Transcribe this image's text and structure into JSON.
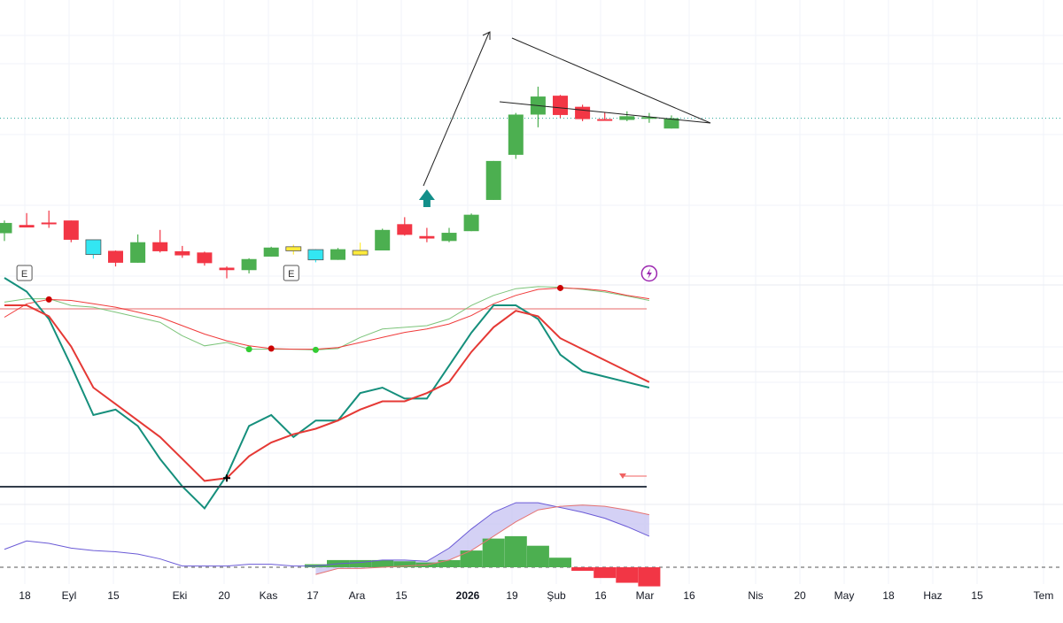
{
  "chart_data": [
    {
      "type": "candlestick",
      "panel": "price",
      "candles": [
        {
          "o": 7.27,
          "h": 7.58,
          "l": 7.08,
          "c": 7.52,
          "color": "#4caf50"
        },
        {
          "o": 7.41,
          "h": 7.76,
          "l": 7.41,
          "c": 7.47,
          "color": "#f23645"
        },
        {
          "o": 7.52,
          "h": 7.82,
          "l": 7.4,
          "c": 7.53,
          "color": "#f23645"
        },
        {
          "o": 7.58,
          "h": 7.58,
          "l": 7.05,
          "c": 7.11,
          "color": "#f23645"
        },
        {
          "o": 7.11,
          "h": 7.11,
          "l": 6.65,
          "c": 6.75,
          "color": "#33e6f2"
        },
        {
          "o": 6.84,
          "h": 6.85,
          "l": 6.46,
          "c": 6.55,
          "color": "#f23645"
        },
        {
          "o": 6.55,
          "h": 7.24,
          "l": 6.55,
          "c": 7.05,
          "color": "#4caf50"
        },
        {
          "o": 7.05,
          "h": 7.35,
          "l": 6.8,
          "c": 6.83,
          "color": "#f23645"
        },
        {
          "o": 6.83,
          "h": 6.96,
          "l": 6.67,
          "c": 6.73,
          "color": "#f23645"
        },
        {
          "o": 6.8,
          "h": 6.82,
          "l": 6.48,
          "c": 6.54,
          "color": "#f23645"
        },
        {
          "o": 6.43,
          "h": 6.46,
          "l": 6.17,
          "c": 6.37,
          "color": "#f23645"
        },
        {
          "o": 6.37,
          "h": 6.66,
          "l": 6.29,
          "c": 6.64,
          "color": "#4caf50"
        },
        {
          "o": 6.7,
          "h": 6.94,
          "l": 6.7,
          "c": 6.92,
          "color": "#4caf50"
        },
        {
          "o": 6.94,
          "h": 6.99,
          "l": 6.75,
          "c": 6.84,
          "color": "#ffeb3b"
        },
        {
          "o": 6.87,
          "h": 6.88,
          "l": 6.56,
          "c": 6.62,
          "color": "#33e6f2"
        },
        {
          "o": 6.62,
          "h": 6.91,
          "l": 6.62,
          "c": 6.88,
          "color": "#4caf50"
        },
        {
          "o": 6.85,
          "h": 7.04,
          "l": 6.72,
          "c": 6.74,
          "color": "#ffeb3b"
        },
        {
          "o": 6.85,
          "h": 7.38,
          "l": 6.85,
          "c": 7.35,
          "color": "#4caf50"
        },
        {
          "o": 7.49,
          "h": 7.66,
          "l": 7.21,
          "c": 7.23,
          "color": "#f23645"
        },
        {
          "o": 7.2,
          "h": 7.4,
          "l": 7.05,
          "c": 7.14,
          "color": "#f23645"
        },
        {
          "o": 7.08,
          "h": 7.4,
          "l": 7.05,
          "c": 7.28,
          "color": "#4caf50"
        },
        {
          "o": 7.32,
          "h": 7.75,
          "l": 7.32,
          "c": 7.72,
          "color": "#4caf50"
        },
        {
          "o": 8.08,
          "h": 9.03,
          "l": 8.08,
          "c": 9.03,
          "color": "#4caf50"
        },
        {
          "o": 9.18,
          "h": 10.2,
          "l": 9.08,
          "c": 10.16,
          "color": "#4caf50"
        },
        {
          "o": 10.16,
          "h": 10.84,
          "l": 9.85,
          "c": 10.6,
          "color": "#4caf50"
        },
        {
          "o": 10.62,
          "h": 10.64,
          "l": 10.08,
          "c": 10.15,
          "color": "#f23645"
        },
        {
          "o": 10.35,
          "h": 10.4,
          "l": 10.0,
          "c": 10.05,
          "color": "#f23645"
        },
        {
          "o": 10.05,
          "h": 10.22,
          "l": 10.01,
          "c": 10.03,
          "color": "#f23645"
        },
        {
          "o": 10.03,
          "h": 10.24,
          "l": 10.0,
          "c": 10.12,
          "color": "#4caf50"
        },
        {
          "o": 10.1,
          "h": 10.2,
          "l": 9.96,
          "c": 10.1,
          "color": "#4caf50"
        },
        {
          "o": 9.82,
          "h": 10.14,
          "l": 9.82,
          "c": 10.07,
          "color": "#4caf50"
        }
      ],
      "reference_price": 10.07,
      "earnings_markers": [
        1,
        13
      ],
      "signal_arrow_at": 19,
      "lightning_marker_at": 29
    },
    {
      "type": "line",
      "panel": "oscillator-1",
      "series": [
        {
          "color": "#7cc47a",
          "values": [
            20,
            30,
            30,
            10,
            5,
            -10,
            -25,
            -40,
            -80,
            -110,
            -100,
            -120,
            -120,
            -120,
            -122,
            -118,
            -85,
            -60,
            -55,
            -50,
            -30,
            10,
            40,
            60,
            66,
            64,
            58,
            50,
            38,
            25
          ]
        },
        {
          "color": "#f03a3a",
          "values": [
            -25,
            15,
            28,
            25,
            15,
            5,
            -10,
            -25,
            -50,
            -75,
            -95,
            -110,
            -118,
            -120,
            -120,
            -115,
            -100,
            -85,
            -70,
            -60,
            -45,
            -20,
            15,
            40,
            58,
            62,
            60,
            54,
            40,
            30
          ]
        }
      ],
      "level": 0,
      "dots": [
        {
          "i": 2,
          "series": 1,
          "color": "#cc0000"
        },
        {
          "i": 11,
          "series": 0,
          "color": "#33cc33"
        },
        {
          "i": 12,
          "series": 1,
          "color": "#cc0000"
        },
        {
          "i": 14,
          "series": 0,
          "color": "#33cc33"
        },
        {
          "i": 25,
          "series": 1,
          "color": "#cc0000"
        }
      ]
    },
    {
      "type": "line",
      "panel": "oscillator-2",
      "series": [
        {
          "color": "#158f7c",
          "values": [
            110,
            105,
            95,
            78,
            60,
            62,
            56,
            44,
            34,
            26,
            38,
            56,
            60,
            52,
            58,
            58,
            68,
            70,
            66,
            66,
            78,
            90,
            100,
            100,
            95,
            82,
            76,
            74,
            72,
            70
          ]
        },
        {
          "color": "#e53935",
          "values": [
            100,
            100,
            96,
            85,
            70,
            64,
            58,
            52,
            44,
            36,
            37,
            45,
            50,
            53,
            55,
            58,
            62,
            65,
            65,
            68,
            72,
            83,
            92,
            98,
            96,
            88,
            84,
            80,
            76,
            72
          ]
        }
      ],
      "cross_marker_at": 10,
      "baseline_color": "#333d4a",
      "signal_triangle_color": "#f06262"
    },
    {
      "type": "histogram",
      "panel": "macd",
      "histogram": [
        0,
        0,
        0,
        0,
        0,
        0,
        0,
        0,
        0,
        0,
        0,
        0,
        0,
        0,
        0.25,
        0.6,
        0.6,
        0.6,
        0.5,
        0.4,
        0.6,
        1.4,
        2.4,
        2.6,
        1.8,
        0.8,
        -0.3,
        -0.9,
        -1.3,
        -1.6
      ],
      "macd": [
        1.5,
        2.2,
        2.0,
        1.6,
        1.4,
        1.3,
        1.1,
        0.7,
        0.1,
        0.1,
        0.1,
        0.25,
        0.25,
        0.1,
        0.1,
        0.3,
        0.4,
        0.6,
        0.6,
        0.5,
        1.6,
        3.2,
        4.6,
        5.4,
        5.4,
        5.0,
        4.6,
        4.1,
        3.4,
        2.6
      ],
      "signal": [
        null,
        null,
        null,
        null,
        null,
        null,
        null,
        null,
        null,
        null,
        null,
        null,
        null,
        null,
        -0.6,
        -0.1,
        -0.1,
        0.0,
        0.1,
        0.2,
        0.6,
        1.4,
        2.6,
        3.8,
        4.8,
        5.1,
        5.2,
        5.1,
        4.8,
        4.4
      ],
      "colors": {
        "macd": "#6a5ad6",
        "signal": "#e57373",
        "fill": "#c9c6f2",
        "hist_pos": "#4caf50",
        "hist_neg": "#f23645"
      }
    }
  ],
  "x_axis_labels": [
    "18",
    "Eyl",
    "15",
    "Eki",
    "20",
    "Kas",
    "17",
    "Ara",
    "15",
    "2026",
    "19",
    "Şub",
    "16",
    "Mar",
    "16",
    "Nis",
    "20",
    "May",
    "18",
    "Haz",
    "15",
    "Tem"
  ],
  "markers": {
    "earnings": "E"
  },
  "colors": {
    "up": "#4caf50",
    "down": "#f23645",
    "grid": "#f0f3fa",
    "dotted_price_line": "#26a69a"
  }
}
